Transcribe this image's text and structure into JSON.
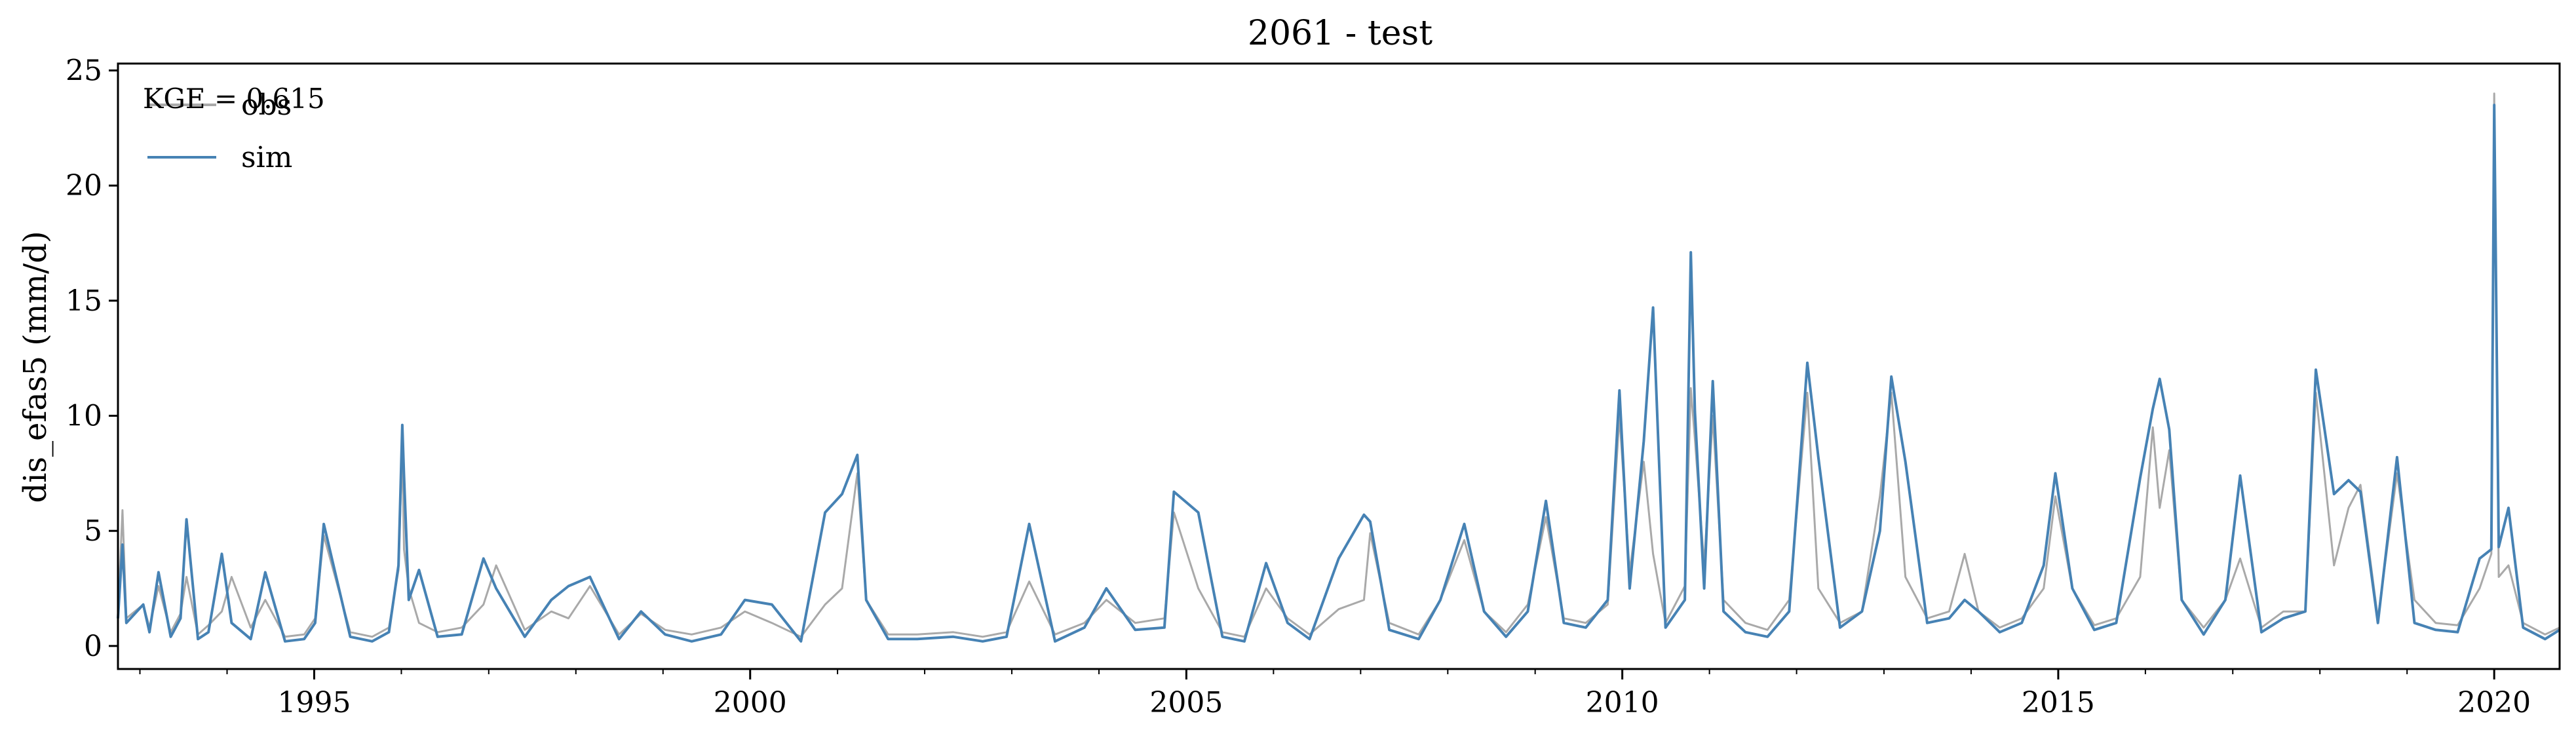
{
  "chart_data": {
    "type": "line",
    "title": "2061 - test",
    "xlabel": "",
    "ylabel": "dis_efas5 (mm/d)",
    "x_axis": {
      "kind": "date",
      "range": [
        "1992-10-01",
        "2020-10-01"
      ],
      "tick_labels": [
        "1995",
        "2000",
        "2005",
        "2010",
        "2015",
        "2020"
      ],
      "tick_values": [
        "1995-01-01",
        "2000-01-01",
        "2005-01-01",
        "2010-01-01",
        "2015-01-01",
        "2020-01-01"
      ]
    },
    "y_axis": {
      "range": [
        -1,
        25.3
      ],
      "tick_labels": [
        "0",
        "5",
        "10",
        "15",
        "20",
        "25"
      ],
      "tick_values": [
        0,
        5,
        10,
        15,
        20,
        25
      ]
    },
    "grid": false,
    "legend": {
      "placement": "top-left",
      "entries": [
        "obs",
        "sim"
      ]
    },
    "annotation": "KGE = 0.615",
    "colors": {
      "obs": "#a9a9a9",
      "sim": "#4682b4"
    },
    "series": [
      {
        "name": "obs",
        "x": [
          "1992-10-01",
          "1992-10-20",
          "1992-11-05",
          "1993-01-15",
          "1993-02-10",
          "1993-03-20",
          "1993-05-10",
          "1993-06-20",
          "1993-07-15",
          "1993-09-01",
          "1993-10-15",
          "1993-12-10",
          "1994-01-20",
          "1994-04-10",
          "1994-06-10",
          "1994-09-01",
          "1994-11-20",
          "1995-01-05",
          "1995-02-10",
          "1995-06-01",
          "1995-09-01",
          "1995-11-10",
          "1995-12-20",
          "1996-01-05",
          "1996-01-12",
          "1996-02-01",
          "1996-03-15",
          "1996-06-01",
          "1996-09-10",
          "1996-12-10",
          "1997-02-01",
          "1997-06-01",
          "1997-09-20",
          "1997-12-01",
          "1998-03-01",
          "1998-07-01",
          "1998-10-01",
          "1999-01-10",
          "1999-05-01",
          "1999-09-01",
          "1999-12-10",
          "2000-04-01",
          "2000-08-01",
          "2000-11-10",
          "2001-01-20",
          "2001-03-25",
          "2001-05-01",
          "2001-08-01",
          "2001-12-01",
          "2002-05-01",
          "2002-09-01",
          "2002-12-10",
          "2003-03-15",
          "2003-07-01",
          "2003-11-01",
          "2004-02-01",
          "2004-06-01",
          "2004-10-01",
          "2004-11-10",
          "2005-02-20",
          "2005-06-01",
          "2005-09-01",
          "2005-12-01",
          "2006-03-01",
          "2006-06-01",
          "2006-10-01",
          "2007-01-15",
          "2007-02-10",
          "2007-05-01",
          "2007-09-01",
          "2007-12-01",
          "2008-03-10",
          "2008-06-01",
          "2008-09-01",
          "2008-12-01",
          "2009-02-15",
          "2009-05-01",
          "2009-08-01",
          "2009-11-01",
          "2009-12-20",
          "2010-02-01",
          "2010-04-01",
          "2010-05-10",
          "2010-07-01",
          "2010-09-20",
          "2010-10-15",
          "2010-11-01",
          "2010-12-10",
          "2011-01-15",
          "2011-03-01",
          "2011-06-01",
          "2011-09-01",
          "2011-12-01",
          "2012-02-15",
          "2012-04-01",
          "2012-07-01",
          "2012-10-01",
          "2012-12-15",
          "2013-02-01",
          "2013-04-01",
          "2013-07-01",
          "2013-10-01",
          "2013-12-05",
          "2014-02-01",
          "2014-05-01",
          "2014-08-01",
          "2014-11-01",
          "2014-12-20",
          "2015-03-01",
          "2015-06-01",
          "2015-09-01",
          "2015-12-10",
          "2016-02-01",
          "2016-03-01",
          "2016-04-10",
          "2016-06-01",
          "2016-09-01",
          "2016-12-01",
          "2017-02-01",
          "2017-05-01",
          "2017-08-01",
          "2017-11-01",
          "2017-12-15",
          "2018-03-01",
          "2018-05-01",
          "2018-06-20",
          "2018-09-01",
          "2018-11-20",
          "2019-02-01",
          "2019-05-01",
          "2019-08-01",
          "2019-11-01",
          "2019-12-20",
          "2020-01-01",
          "2020-01-20",
          "2020-03-01",
          "2020-05-01",
          "2020-08-01",
          "2020-10-01"
        ],
        "y": [
          1.4,
          5.9,
          1.2,
          1.8,
          0.8,
          2.6,
          0.6,
          1.4,
          3.0,
          0.5,
          0.9,
          1.5,
          3.0,
          0.8,
          2.0,
          0.4,
          0.5,
          1.2,
          4.8,
          0.6,
          0.4,
          0.8,
          3.3,
          8.8,
          4.2,
          2.5,
          1.0,
          0.6,
          0.8,
          1.8,
          3.5,
          0.7,
          1.5,
          1.2,
          2.6,
          0.5,
          1.4,
          0.7,
          0.5,
          0.8,
          1.5,
          1.0,
          0.4,
          1.8,
          2.5,
          7.5,
          2.0,
          0.5,
          0.5,
          0.6,
          0.4,
          0.6,
          2.8,
          0.5,
          1.0,
          2.0,
          1.0,
          1.2,
          5.8,
          2.5,
          0.6,
          0.4,
          2.5,
          1.2,
          0.5,
          1.6,
          2.0,
          4.9,
          1.0,
          0.5,
          2.0,
          4.6,
          1.5,
          0.6,
          1.8,
          5.6,
          1.2,
          1.0,
          1.8,
          10.0,
          3.2,
          8.0,
          4.0,
          1.0,
          2.6,
          11.2,
          9.0,
          3.5,
          10.0,
          2.0,
          1.0,
          0.7,
          2.0,
          11.0,
          2.5,
          1.0,
          1.5,
          6.5,
          11.0,
          3.0,
          1.2,
          1.5,
          4.0,
          1.5,
          0.8,
          1.2,
          2.5,
          6.5,
          2.5,
          0.9,
          1.2,
          3.0,
          9.5,
          6.0,
          8.5,
          2.0,
          0.8,
          2.0,
          3.8,
          0.8,
          1.5,
          1.5,
          11.0,
          3.5,
          6.0,
          7.0,
          1.2,
          7.5,
          2.0,
          1.0,
          0.9,
          2.5,
          4.0,
          24.0,
          3.0,
          3.5,
          1.0,
          0.5,
          0.8
        ]
      },
      {
        "name": "sim",
        "x": [
          "1992-10-01",
          "1992-10-20",
          "1992-11-05",
          "1993-01-15",
          "1993-02-10",
          "1993-03-20",
          "1993-05-10",
          "1993-06-20",
          "1993-07-15",
          "1993-09-01",
          "1993-10-15",
          "1993-12-10",
          "1994-01-20",
          "1994-04-10",
          "1994-06-10",
          "1994-09-01",
          "1994-11-20",
          "1995-01-05",
          "1995-02-10",
          "1995-06-01",
          "1995-09-01",
          "1995-11-10",
          "1995-12-20",
          "1996-01-05",
          "1996-01-12",
          "1996-02-01",
          "1996-03-15",
          "1996-06-01",
          "1996-09-10",
          "1996-12-10",
          "1997-02-01",
          "1997-06-01",
          "1997-09-20",
          "1997-12-01",
          "1998-03-01",
          "1998-07-01",
          "1998-10-01",
          "1999-01-10",
          "1999-05-01",
          "1999-09-01",
          "1999-12-10",
          "2000-04-01",
          "2000-08-01",
          "2000-11-10",
          "2001-01-20",
          "2001-03-25",
          "2001-05-01",
          "2001-08-01",
          "2001-12-01",
          "2002-05-01",
          "2002-09-01",
          "2002-12-10",
          "2003-03-15",
          "2003-07-01",
          "2003-11-01",
          "2004-02-01",
          "2004-06-01",
          "2004-10-01",
          "2004-11-10",
          "2005-02-20",
          "2005-06-01",
          "2005-09-01",
          "2005-12-01",
          "2006-03-01",
          "2006-06-01",
          "2006-10-01",
          "2007-01-15",
          "2007-02-10",
          "2007-05-01",
          "2007-09-01",
          "2007-12-01",
          "2008-03-10",
          "2008-06-01",
          "2008-09-01",
          "2008-12-01",
          "2009-02-15",
          "2009-05-01",
          "2009-08-01",
          "2009-11-01",
          "2009-12-20",
          "2010-02-01",
          "2010-04-01",
          "2010-05-10",
          "2010-07-01",
          "2010-09-20",
          "2010-10-15",
          "2010-11-01",
          "2010-12-10",
          "2011-01-15",
          "2011-03-01",
          "2011-06-01",
          "2011-09-01",
          "2011-12-01",
          "2012-02-15",
          "2012-04-01",
          "2012-07-01",
          "2012-10-01",
          "2012-12-15",
          "2013-02-01",
          "2013-04-01",
          "2013-07-01",
          "2013-10-01",
          "2013-12-05",
          "2014-02-01",
          "2014-05-01",
          "2014-08-01",
          "2014-11-01",
          "2014-12-20",
          "2015-03-01",
          "2015-06-01",
          "2015-09-01",
          "2015-12-10",
          "2016-02-01",
          "2016-03-01",
          "2016-04-10",
          "2016-06-01",
          "2016-09-01",
          "2016-12-01",
          "2017-02-01",
          "2017-05-01",
          "2017-08-01",
          "2017-11-01",
          "2017-12-15",
          "2018-03-01",
          "2018-05-01",
          "2018-06-20",
          "2018-09-01",
          "2018-11-20",
          "2019-02-01",
          "2019-05-01",
          "2019-08-01",
          "2019-11-01",
          "2019-12-20",
          "2020-01-01",
          "2020-01-20",
          "2020-03-01",
          "2020-05-01",
          "2020-08-01",
          "2020-10-01"
        ],
        "y": [
          1.2,
          4.4,
          1.0,
          1.8,
          0.6,
          3.2,
          0.4,
          1.2,
          5.5,
          0.3,
          0.6,
          4.0,
          1.0,
          0.3,
          3.2,
          0.2,
          0.3,
          1.0,
          5.3,
          0.4,
          0.2,
          0.6,
          3.5,
          9.6,
          7.4,
          2.0,
          3.3,
          0.4,
          0.5,
          3.8,
          2.5,
          0.4,
          2.0,
          2.6,
          3.0,
          0.3,
          1.5,
          0.5,
          0.2,
          0.5,
          2.0,
          1.8,
          0.2,
          5.8,
          6.6,
          8.3,
          2.0,
          0.3,
          0.3,
          0.4,
          0.2,
          0.4,
          5.3,
          0.2,
          0.8,
          2.5,
          0.7,
          0.8,
          6.7,
          5.8,
          0.4,
          0.2,
          3.6,
          1.0,
          0.3,
          3.8,
          5.7,
          5.4,
          0.7,
          0.3,
          2.0,
          5.3,
          1.5,
          0.4,
          1.5,
          6.3,
          1.0,
          0.8,
          2.0,
          11.1,
          2.5,
          8.9,
          14.7,
          0.8,
          2.0,
          17.1,
          10.2,
          2.5,
          11.5,
          1.5,
          0.6,
          0.4,
          1.5,
          12.3,
          8.2,
          0.8,
          1.5,
          5.0,
          11.7,
          8.0,
          1.0,
          1.2,
          2.0,
          1.5,
          0.6,
          1.0,
          3.5,
          7.5,
          2.5,
          0.7,
          1.0,
          7.3,
          10.3,
          11.6,
          9.4,
          2.0,
          0.5,
          2.0,
          7.4,
          0.6,
          1.2,
          1.5,
          12.0,
          6.6,
          7.2,
          6.7,
          1.0,
          8.2,
          1.0,
          0.7,
          0.6,
          3.8,
          4.2,
          23.5,
          4.3,
          6.0,
          0.8,
          0.3,
          0.7
        ]
      }
    ]
  }
}
